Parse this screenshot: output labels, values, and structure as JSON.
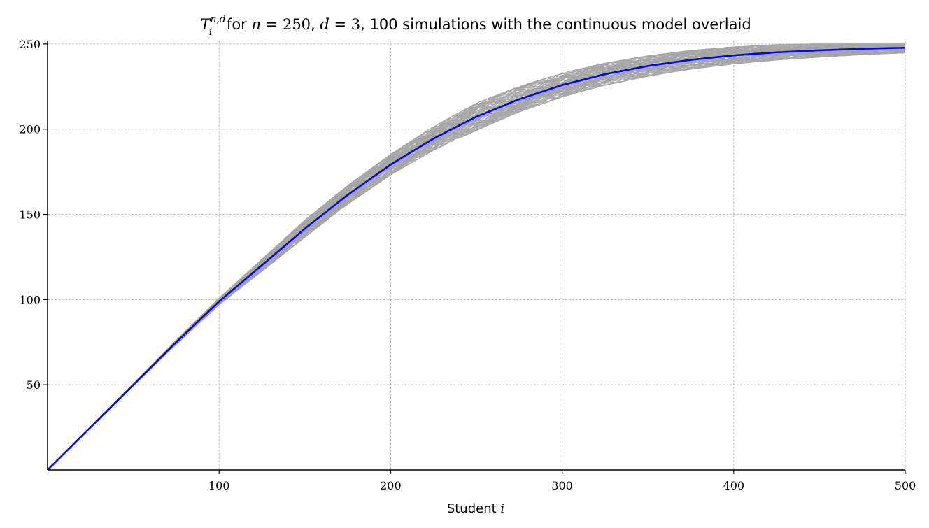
{
  "chart_data": {
    "type": "line",
    "title": {
      "prefix": "T",
      "subscript": "i",
      "superscript": "n,d",
      "for_text": " for ",
      "n_symbol": "n",
      "n_value": " = 250",
      "sep1": ", ",
      "d_symbol": "d",
      "d_value": " = 3",
      "rest": ", 100 simulations with the continuous model overlaid"
    },
    "xlabel": {
      "text": "Student ",
      "var": "i"
    },
    "ylabel": "",
    "xlim": [
      0,
      500
    ],
    "ylim": [
      0,
      252
    ],
    "x_ticks": [
      100,
      200,
      300,
      400,
      500
    ],
    "y_ticks": [
      50,
      100,
      150,
      200,
      250
    ],
    "grid": true,
    "parameters": {
      "n": 250,
      "d": 3,
      "simulations": 100
    },
    "series": [
      {
        "kind": "simulations",
        "count": 100,
        "color": "#a6a6a6",
        "x": [
          0,
          50,
          100,
          150,
          200,
          250,
          300,
          350,
          400,
          450,
          500
        ],
        "y_spread": [
          0,
          0.5,
          2,
          5,
          6,
          8,
          7,
          6,
          5,
          4,
          3
        ]
      },
      {
        "kind": "model",
        "color": "#0000ff",
        "x": [
          0,
          25,
          50,
          75,
          100,
          125,
          150,
          175,
          200,
          225,
          250,
          275,
          300,
          325,
          350,
          375,
          400,
          425,
          450,
          475,
          500
        ],
        "y": [
          0,
          25,
          50,
          75,
          98.9,
          120.2,
          141.6,
          161.5,
          179.2,
          194.5,
          207.3,
          217.6,
          225.9,
          232.3,
          237.1,
          240.7,
          243.3,
          245.1,
          246.3,
          247.2,
          247.8
        ]
      }
    ]
  }
}
